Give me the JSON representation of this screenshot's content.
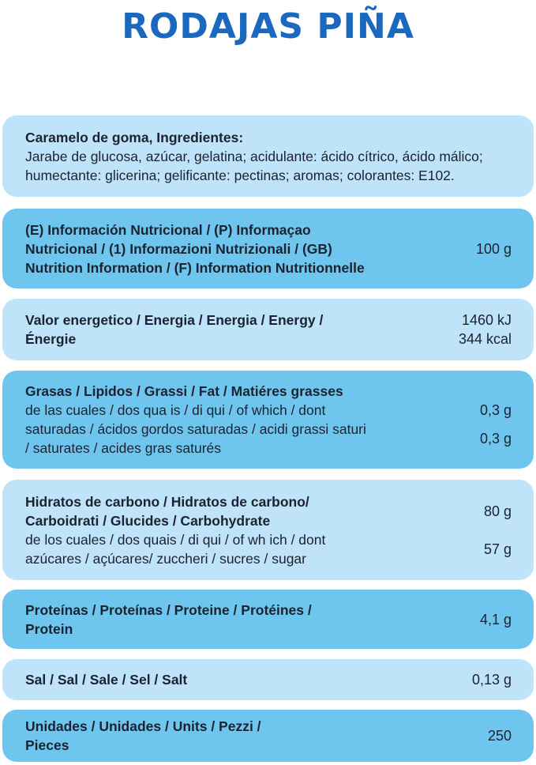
{
  "title": "RODAJAS PIÑA",
  "ingredients": {
    "heading": "Caramelo de goma, Ingredientes:",
    "text1": "Jarabe de glucosa, azúcar, gelatina; acidulante: ácido cítrico, ácido málico;",
    "text2": "humectante: glicerina; gelificante: pectinas; aromas; colorantes: E102."
  },
  "nutrition_header": {
    "line1": "(E) Información Nutricional / (P) Informaçao",
    "line2": "Nutricional / (1) Informazioni Nutrizionali / (GB)",
    "line3": "Nutrition Information / (F) Information Nutritionnelle",
    "value": "100 g"
  },
  "energy": {
    "line1": "Valor energetico / Energia / Energia / Energy /",
    "line2": "Énergie",
    "value_kj": "1460 kJ",
    "value_kcal": "344 kcal"
  },
  "fat": {
    "line1": "Grasas / Lipidos / Grassi / Fat / Matiéres grasses",
    "line2": "de las cuales / dos qua is / di qui / of which / dont",
    "line3": "saturadas / ácidos gordos saturadas / acidi grassi saturi",
    "line4": "/ saturates / acides gras saturés",
    "value_fat": "0,3 g",
    "value_saturates": "0,3 g"
  },
  "carbs": {
    "line1": "Hidratos de carbono / Hidratos de carbono/",
    "line2": "Carboidrati / Glucides / Carbohydrate",
    "line3": "de los cuales / dos quais / di qui / of wh ich / dont",
    "line4": "azúcares / açúcares/ zuccheri / sucres / sugar",
    "value_carbs": "80 g",
    "value_sugar": "57 g"
  },
  "protein": {
    "line1": "Proteínas / Proteínas / Proteine / Protéines /",
    "line2": "Protein",
    "value": "4,1 g"
  },
  "salt": {
    "label": "Sal / Sal / Sale / Sel / Salt",
    "value": "0,13 g"
  },
  "units": {
    "line1": "Unidades / Unidades / Units / Pezzi /",
    "line2": "Pieces",
    "value": "250"
  }
}
